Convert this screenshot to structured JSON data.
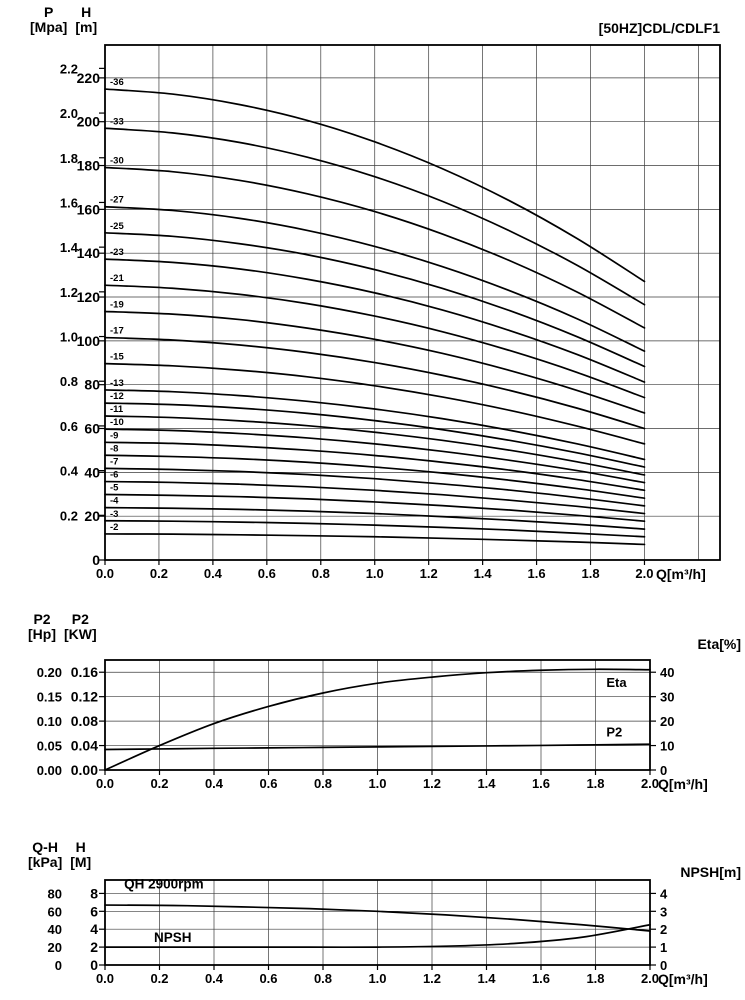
{
  "colors": {
    "ink": "#000000",
    "grid": "#3c3c3c",
    "background": "#ffffff"
  },
  "chart_data": [
    {
      "id": "hq",
      "type": "line",
      "title": "[50HZ]CDL/CDLF1",
      "x_label": "Q[m³/h]",
      "x_ticks": [
        "0.0",
        "0.2",
        "0.4",
        "0.6",
        "0.8",
        "1.0",
        "1.2",
        "1.4",
        "1.6",
        "1.8",
        "2.0"
      ],
      "xlim": [
        0,
        2.28
      ],
      "ylim": [
        0,
        235
      ],
      "x": [
        0,
        0.25,
        0.5,
        0.75,
        1.0,
        1.25,
        1.5,
        1.75,
        2.0
      ],
      "left_outer_axis": {
        "name": "P",
        "unit": "[Mpa]",
        "ticks": [
          "2.2",
          "2.0",
          "1.8",
          "1.6",
          "1.4",
          "1.2",
          "1.0",
          "0.8",
          "0.6",
          "0.4",
          "0.2"
        ],
        "scale_to_inner": 101.97
      },
      "left_inner_axis": {
        "name": "H",
        "unit": "[m]",
        "ticks": [
          "220",
          "200",
          "180",
          "160",
          "140",
          "120",
          "100",
          "80",
          "60",
          "40",
          "20",
          "0"
        ]
      },
      "grid": true,
      "series": [
        {
          "name": "-36",
          "values": [
            214.9,
            212.6,
            207.8,
            200.6,
            190.8,
            178.6,
            163.9,
            146.7,
            127.1
          ]
        },
        {
          "name": "-33",
          "values": [
            197.0,
            194.9,
            190.5,
            183.8,
            174.9,
            163.7,
            150.2,
            134.5,
            116.5
          ]
        },
        {
          "name": "-30",
          "values": [
            179.1,
            177.2,
            173.2,
            167.1,
            159.0,
            148.8,
            136.6,
            122.3,
            105.9
          ]
        },
        {
          "name": "-27",
          "values": [
            161.2,
            159.5,
            155.9,
            150.4,
            143.1,
            133.9,
            122.9,
            110.1,
            95.3
          ]
        },
        {
          "name": "-25",
          "values": [
            149.3,
            147.7,
            144.3,
            139.3,
            132.5,
            124.0,
            113.8,
            101.9,
            88.3
          ]
        },
        {
          "name": "-23",
          "values": [
            137.3,
            135.8,
            132.8,
            128.1,
            121.9,
            114.1,
            104.7,
            93.8,
            81.2
          ]
        },
        {
          "name": "-21",
          "values": [
            125.4,
            124.0,
            121.2,
            117.0,
            111.3,
            104.2,
            95.6,
            85.6,
            74.1
          ]
        },
        {
          "name": "-19",
          "values": [
            113.4,
            112.2,
            109.7,
            105.8,
            100.7,
            94.3,
            86.5,
            77.4,
            67.1
          ]
        },
        {
          "name": "-17",
          "values": [
            101.5,
            100.4,
            98.1,
            94.7,
            90.1,
            84.3,
            77.4,
            69.3,
            60.0
          ]
        },
        {
          "name": "-15",
          "values": [
            89.6,
            88.6,
            86.6,
            83.6,
            79.5,
            74.4,
            68.3,
            61.1,
            53.0
          ]
        },
        {
          "name": "-13",
          "values": [
            77.6,
            76.8,
            75.0,
            72.4,
            68.9,
            64.5,
            59.2,
            53.0,
            45.9
          ]
        },
        {
          "name": "-12",
          "values": [
            71.6,
            70.9,
            69.3,
            66.9,
            63.6,
            59.5,
            54.6,
            48.9,
            42.4
          ]
        },
        {
          "name": "-11",
          "values": [
            65.7,
            65.0,
            63.5,
            61.3,
            58.3,
            54.6,
            50.1,
            44.8,
            38.8
          ]
        },
        {
          "name": "-10",
          "values": [
            59.7,
            59.1,
            57.7,
            55.7,
            53.0,
            49.6,
            45.5,
            40.8,
            35.3
          ]
        },
        {
          "name": "-9",
          "values": [
            53.7,
            53.2,
            51.9,
            50.1,
            47.7,
            44.6,
            41.0,
            36.7,
            31.8
          ]
        },
        {
          "name": "-8",
          "values": [
            47.8,
            47.2,
            46.2,
            44.6,
            42.4,
            39.7,
            36.4,
            32.6,
            28.2
          ]
        },
        {
          "name": "-7",
          "values": [
            41.8,
            41.3,
            40.4,
            39.0,
            37.1,
            34.7,
            31.9,
            28.5,
            24.7
          ]
        },
        {
          "name": "-6",
          "values": [
            35.8,
            35.4,
            34.6,
            33.4,
            31.8,
            29.8,
            27.3,
            24.5,
            21.2
          ]
        },
        {
          "name": "-5",
          "values": [
            29.9,
            29.5,
            28.9,
            27.9,
            26.5,
            24.8,
            22.8,
            20.4,
            17.7
          ]
        },
        {
          "name": "-4",
          "values": [
            23.9,
            23.6,
            23.1,
            22.3,
            21.2,
            19.8,
            18.2,
            16.3,
            14.1
          ]
        },
        {
          "name": "-3",
          "values": [
            17.9,
            17.7,
            17.3,
            16.7,
            15.9,
            14.9,
            13.7,
            12.2,
            10.6
          ]
        },
        {
          "name": "-2",
          "values": [
            11.9,
            11.8,
            11.5,
            11.1,
            10.6,
            9.9,
            9.1,
            8.2,
            7.1
          ]
        }
      ]
    },
    {
      "id": "power",
      "type": "line",
      "x_label": "Q[m³/h]",
      "x_ticks": [
        "0.0",
        "0.2",
        "0.4",
        "0.6",
        "0.8",
        "1.0",
        "1.2",
        "1.4",
        "1.6",
        "1.8",
        "2.0"
      ],
      "xlim": [
        0,
        2.0
      ],
      "ylim": [
        0,
        0.18
      ],
      "x": [
        0,
        0.2,
        0.4,
        0.6,
        0.8,
        1.0,
        1.2,
        1.4,
        1.6,
        1.8,
        2.0
      ],
      "left_outer_axis": {
        "name": "P2",
        "unit": "[Hp]",
        "ticks": [
          "0.20",
          "0.15",
          "0.10",
          "0.05",
          "0.00"
        ]
      },
      "left_inner_axis": {
        "name": "P2",
        "unit": "[KW]",
        "ticks": [
          "0.16",
          "0.12",
          "0.08",
          "0.04",
          "0.00"
        ]
      },
      "right_axis": {
        "label": "Eta[%]",
        "ticks": [
          "40",
          "30",
          "20",
          "10",
          "0"
        ],
        "scale_to_inner": 0.004
      },
      "grid": true,
      "series": [
        {
          "name": "Eta",
          "axis": "right",
          "values": [
            0,
            10,
            19,
            26,
            31.5,
            35.5,
            38,
            39.8,
            40.8,
            41.2,
            41
          ],
          "label": {
            "x": 1.84,
            "y": 34
          }
        },
        {
          "name": "P2",
          "axis": "inner",
          "values": [
            0.0335,
            0.0345,
            0.0355,
            0.0362,
            0.037,
            0.0378,
            0.0386,
            0.0394,
            0.0402,
            0.0412,
            0.0422
          ],
          "label": {
            "x": 1.84,
            "y": 0.055
          }
        }
      ]
    },
    {
      "id": "npsh",
      "type": "line",
      "x_label": "Q[m³/h]",
      "x_ticks": [
        "0.0",
        "0.2",
        "0.4",
        "0.6",
        "0.8",
        "1.0",
        "1.2",
        "1.4",
        "1.6",
        "1.8",
        "2.0"
      ],
      "xlim": [
        0,
        2.0
      ],
      "ylim": [
        0,
        9.5
      ],
      "x": [
        0,
        0.25,
        0.5,
        0.75,
        1.0,
        1.25,
        1.5,
        1.75,
        2.0
      ],
      "left_outer_axis": {
        "name": "Q-H",
        "unit": "[kPa]",
        "ticks": [
          "80",
          "60",
          "40",
          "20",
          "0"
        ]
      },
      "left_inner_axis": {
        "name": "H",
        "unit": "[M]",
        "ticks": [
          "8",
          "6",
          "4",
          "2",
          "0"
        ]
      },
      "right_axis": {
        "label": "NPSH[m]",
        "ticks": [
          "4",
          "3",
          "2",
          "1",
          "0"
        ],
        "scale_to_inner": 2
      },
      "grid": true,
      "series": [
        {
          "name": "QH",
          "axis": "inner",
          "values": [
            6.7,
            6.65,
            6.5,
            6.3,
            6.0,
            5.6,
            5.1,
            4.5,
            3.8
          ]
        },
        {
          "name": "NPSH",
          "axis": "right",
          "values": [
            1.0,
            1.0,
            1.0,
            1.0,
            1.0,
            1.05,
            1.2,
            1.55,
            2.25
          ]
        }
      ],
      "annotations": [
        {
          "text": "QH 2900rpm",
          "x": 0.07,
          "y": 8.55
        },
        {
          "text": "NPSH",
          "x": 0.18,
          "y": 2.55
        }
      ]
    }
  ]
}
